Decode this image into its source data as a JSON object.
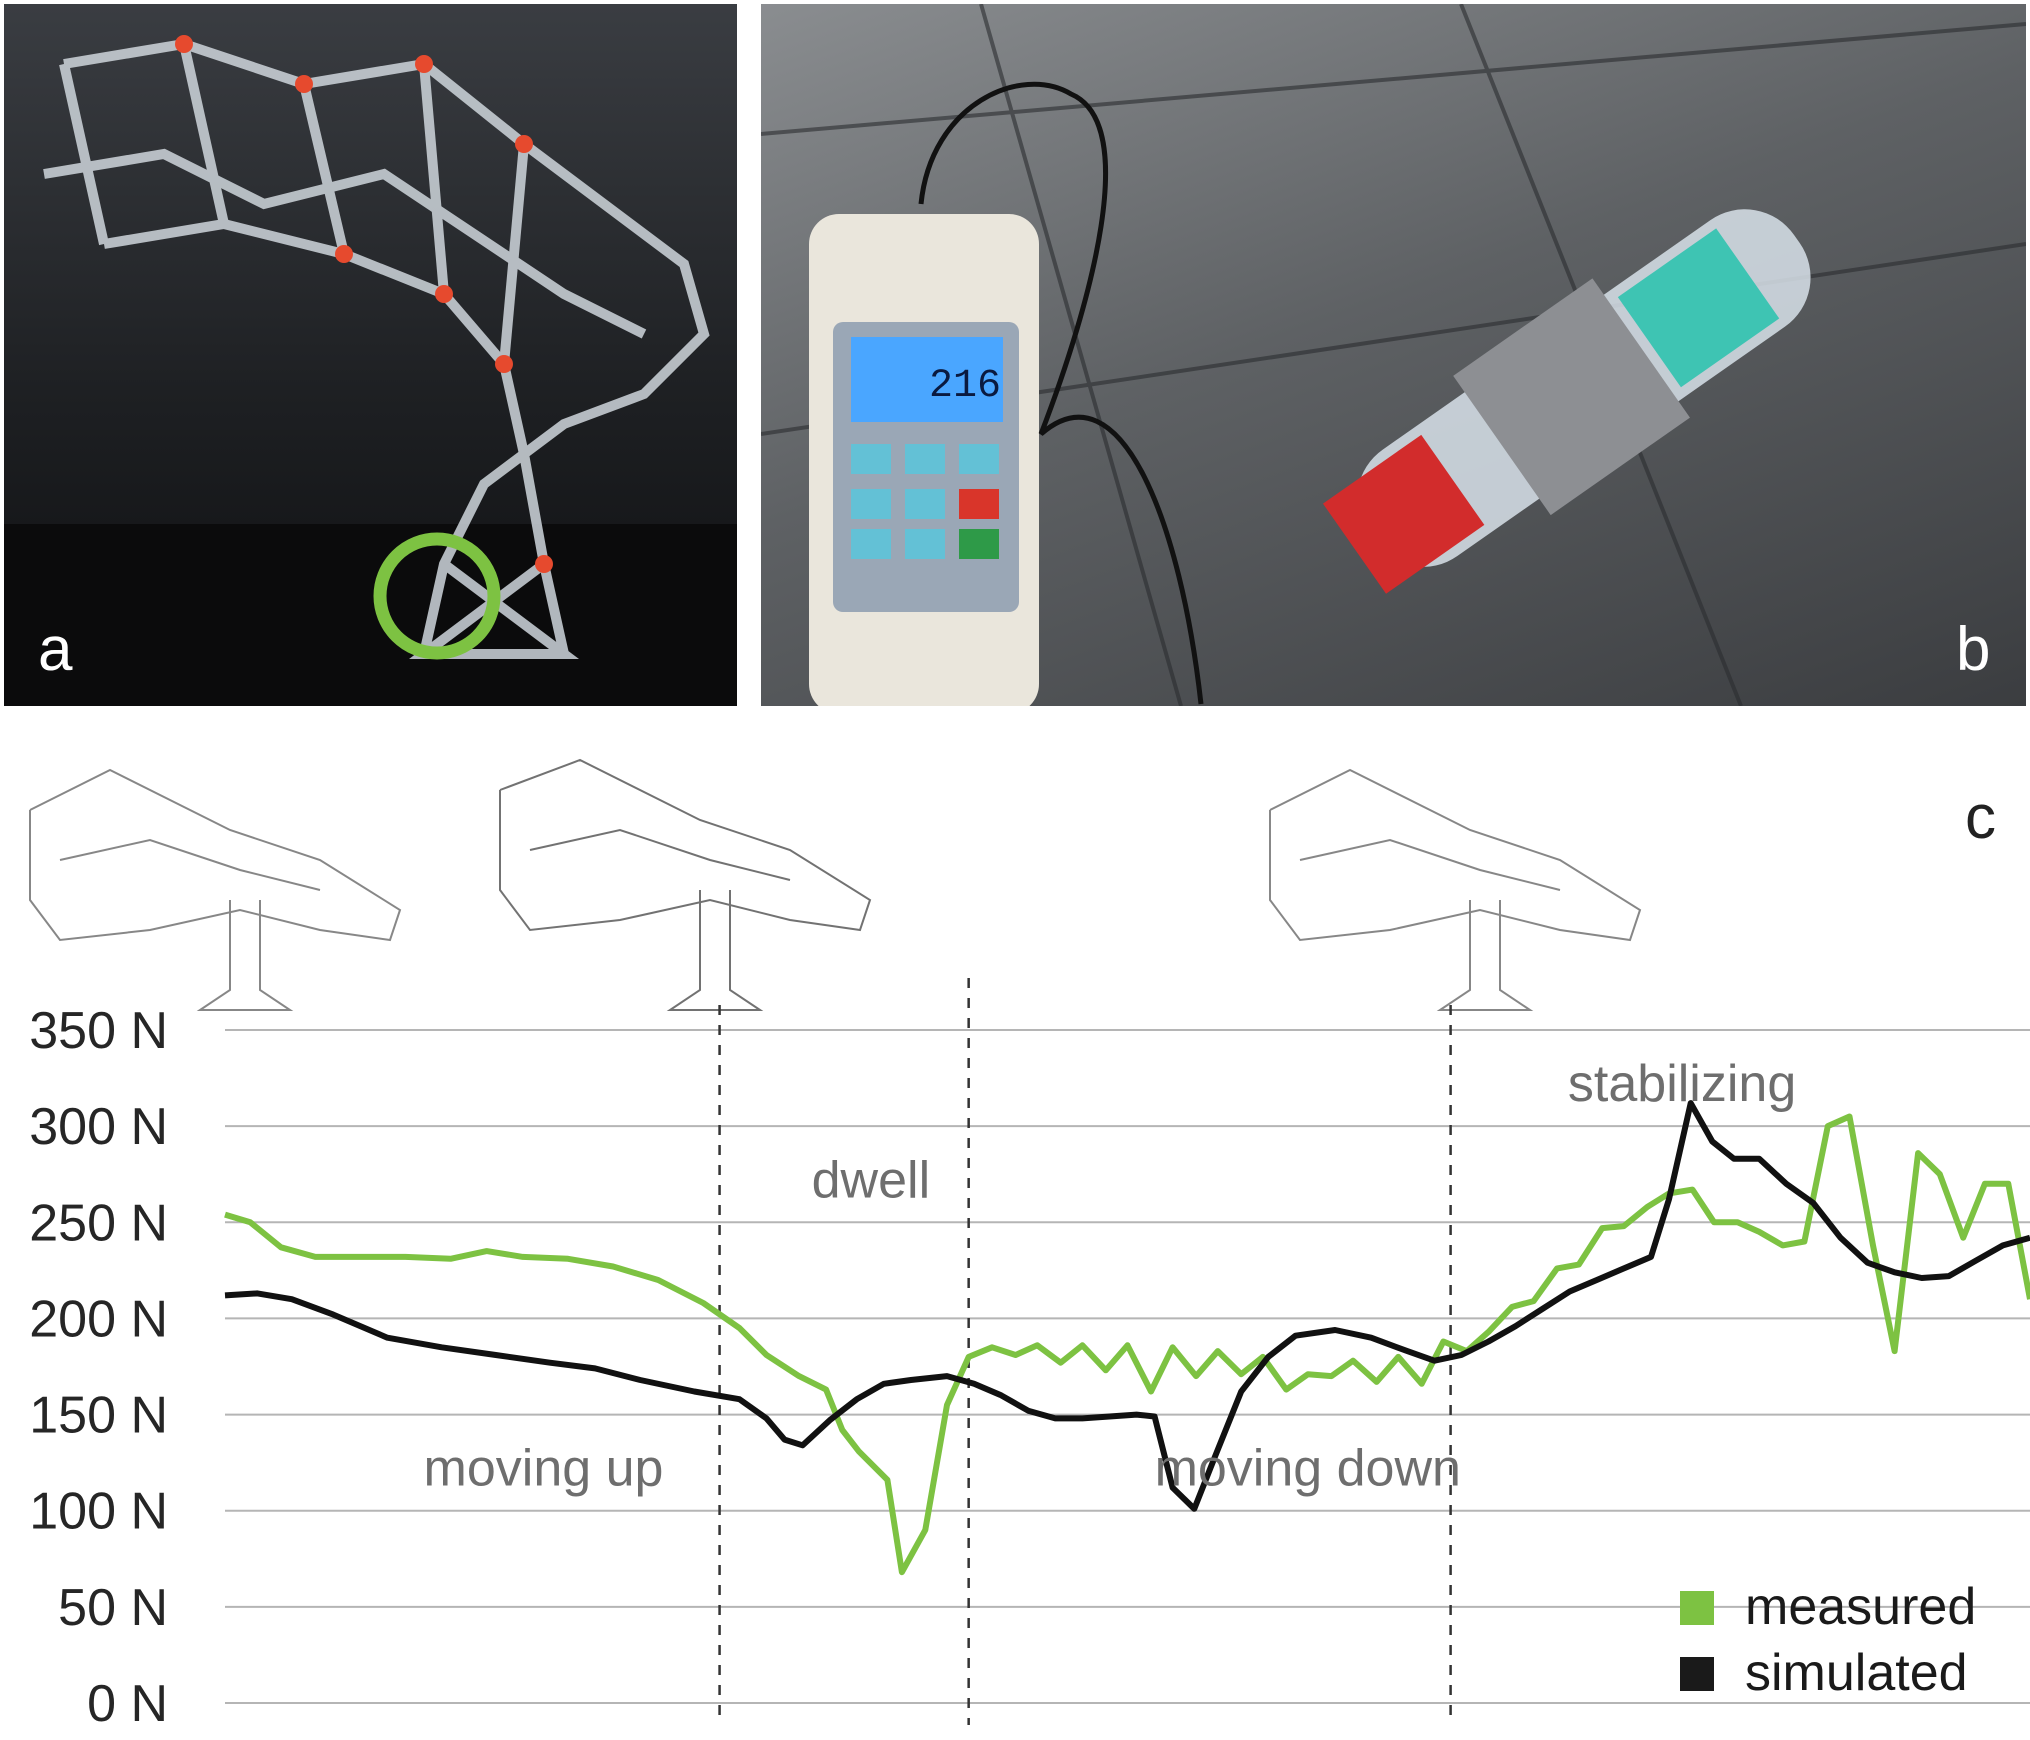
{
  "panels": {
    "a": "a",
    "b": "b",
    "c": "c"
  },
  "photo_a": {
    "description_icon": "bottle-structure-photo-icon",
    "highlight_color": "#7dc242"
  },
  "photo_b": {
    "description_icon": "force-gauge-photo-icon",
    "display_value": "216"
  },
  "chart_data": {
    "type": "line",
    "ylim": [
      0,
      350
    ],
    "y_ticks": [
      "0 N",
      "50 N",
      "100 N",
      "150 N",
      "200 N",
      "250 N",
      "300 N",
      "350 N"
    ],
    "y_tick_values": [
      0,
      50,
      100,
      150,
      200,
      250,
      300,
      350
    ],
    "xlim": [
      0,
      100
    ],
    "phase_boundaries": [
      27.4,
      41.2,
      67.9
    ],
    "phase_labels": [
      {
        "text": "moving up",
        "x": 11.0,
        "y": 113
      },
      {
        "text": "dwell",
        "x": 32.5,
        "y": 263
      },
      {
        "text": "moving down",
        "x": 51.5,
        "y": 113
      },
      {
        "text": "stabilizing",
        "x": 74.4,
        "y": 313
      }
    ],
    "series": [
      {
        "name": "measured",
        "color": "#7dc242",
        "points": [
          [
            0,
            254
          ],
          [
            1.4,
            250
          ],
          [
            3.1,
            237
          ],
          [
            5.0,
            232
          ],
          [
            7.5,
            232
          ],
          [
            10.0,
            232
          ],
          [
            12.5,
            231
          ],
          [
            14.5,
            235
          ],
          [
            16.5,
            232
          ],
          [
            19.0,
            231
          ],
          [
            21.5,
            227
          ],
          [
            24.0,
            220
          ],
          [
            26.5,
            208
          ],
          [
            28.5,
            195
          ],
          [
            30.0,
            181
          ],
          [
            31.8,
            170
          ],
          [
            33.3,
            163
          ],
          [
            34.2,
            142
          ],
          [
            35.1,
            131
          ],
          [
            36.7,
            116
          ],
          [
            37.5,
            68
          ],
          [
            38.8,
            90
          ],
          [
            40.0,
            155
          ],
          [
            41.2,
            180
          ],
          [
            42.5,
            185
          ],
          [
            43.8,
            181
          ],
          [
            45.0,
            186
          ],
          [
            46.3,
            177
          ],
          [
            47.5,
            186
          ],
          [
            48.8,
            173
          ],
          [
            50.0,
            186
          ],
          [
            51.3,
            162
          ],
          [
            52.5,
            185
          ],
          [
            53.8,
            170
          ],
          [
            55.0,
            183
          ],
          [
            56.3,
            171
          ],
          [
            57.5,
            180
          ],
          [
            58.8,
            163
          ],
          [
            60.0,
            171
          ],
          [
            61.3,
            170
          ],
          [
            62.5,
            178
          ],
          [
            63.8,
            167
          ],
          [
            65.0,
            180
          ],
          [
            66.3,
            166
          ],
          [
            67.5,
            188
          ],
          [
            68.8,
            183
          ],
          [
            70.0,
            193
          ],
          [
            71.3,
            206
          ],
          [
            72.5,
            209
          ],
          [
            73.8,
            226
          ],
          [
            75.0,
            228
          ],
          [
            76.3,
            247
          ],
          [
            77.5,
            248
          ],
          [
            78.8,
            258
          ],
          [
            80.0,
            265
          ],
          [
            81.3,
            267
          ],
          [
            82.5,
            250
          ],
          [
            83.8,
            250
          ],
          [
            85.0,
            245
          ],
          [
            86.3,
            238
          ],
          [
            87.5,
            240
          ],
          [
            88.8,
            300
          ],
          [
            90.0,
            305
          ],
          [
            91.3,
            238
          ],
          [
            92.5,
            183
          ],
          [
            93.8,
            286
          ],
          [
            95.0,
            275
          ],
          [
            96.3,
            242
          ],
          [
            97.5,
            270
          ],
          [
            98.8,
            270
          ],
          [
            100.0,
            210
          ]
        ]
      },
      {
        "name": "simulated",
        "color": "#111111",
        "points": [
          [
            0,
            212
          ],
          [
            1.8,
            213
          ],
          [
            3.7,
            210
          ],
          [
            6.0,
            202
          ],
          [
            9.0,
            190
          ],
          [
            12.0,
            185
          ],
          [
            15.0,
            181
          ],
          [
            18.0,
            177
          ],
          [
            20.5,
            174
          ],
          [
            23.0,
            168
          ],
          [
            26.0,
            162
          ],
          [
            28.5,
            158
          ],
          [
            30.0,
            148
          ],
          [
            31.0,
            137
          ],
          [
            32.0,
            134
          ],
          [
            33.5,
            147
          ],
          [
            35.0,
            158
          ],
          [
            36.5,
            166
          ],
          [
            38.0,
            168
          ],
          [
            40.0,
            170
          ],
          [
            41.5,
            166
          ],
          [
            43.0,
            160
          ],
          [
            44.5,
            152
          ],
          [
            46.0,
            148
          ],
          [
            47.5,
            148
          ],
          [
            49.0,
            149
          ],
          [
            50.5,
            150
          ],
          [
            51.5,
            149
          ],
          [
            52.5,
            112
          ],
          [
            53.7,
            101
          ],
          [
            54.8,
            127
          ],
          [
            56.3,
            162
          ],
          [
            57.8,
            180
          ],
          [
            59.3,
            191
          ],
          [
            61.5,
            194
          ],
          [
            63.5,
            190
          ],
          [
            65.5,
            183
          ],
          [
            67.0,
            178
          ],
          [
            68.5,
            181
          ],
          [
            70.0,
            188
          ],
          [
            71.5,
            196
          ],
          [
            73.0,
            205
          ],
          [
            74.5,
            214
          ],
          [
            76.0,
            220
          ],
          [
            77.5,
            226
          ],
          [
            79.0,
            232
          ],
          [
            80.0,
            262
          ],
          [
            81.2,
            312
          ],
          [
            82.4,
            292
          ],
          [
            83.6,
            283
          ],
          [
            85.0,
            283
          ],
          [
            86.5,
            270
          ],
          [
            88.0,
            260
          ],
          [
            89.5,
            242
          ],
          [
            91.0,
            229
          ],
          [
            92.5,
            224
          ],
          [
            94.0,
            221
          ],
          [
            95.5,
            222
          ],
          [
            97.0,
            230
          ],
          [
            98.5,
            238
          ],
          [
            100.0,
            242
          ]
        ]
      }
    ],
    "legend": {
      "position": "bottom-right",
      "entries": [
        "measured",
        "simulated"
      ]
    }
  }
}
